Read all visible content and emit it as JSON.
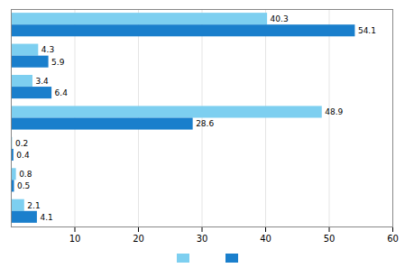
{
  "chart_data": {
    "type": "bar",
    "orientation": "horizontal",
    "categories": [
      null,
      null,
      null,
      null,
      null,
      null,
      null
    ],
    "series": [
      {
        "color": "#7DCFF0",
        "values": [
          40.3,
          4.3,
          3.4,
          48.9,
          0.2,
          0.8,
          2.1
        ]
      },
      {
        "color": "#1A7FCC",
        "values": [
          54.1,
          5.9,
          6.4,
          28.6,
          0.4,
          0.5,
          4.1
        ]
      }
    ],
    "xlim": [
      0,
      60
    ],
    "xticks": [
      10,
      20,
      30,
      40,
      50,
      60
    ],
    "grid": true,
    "data_labels": true,
    "tick_labels": "x",
    "legend": "bottom"
  }
}
